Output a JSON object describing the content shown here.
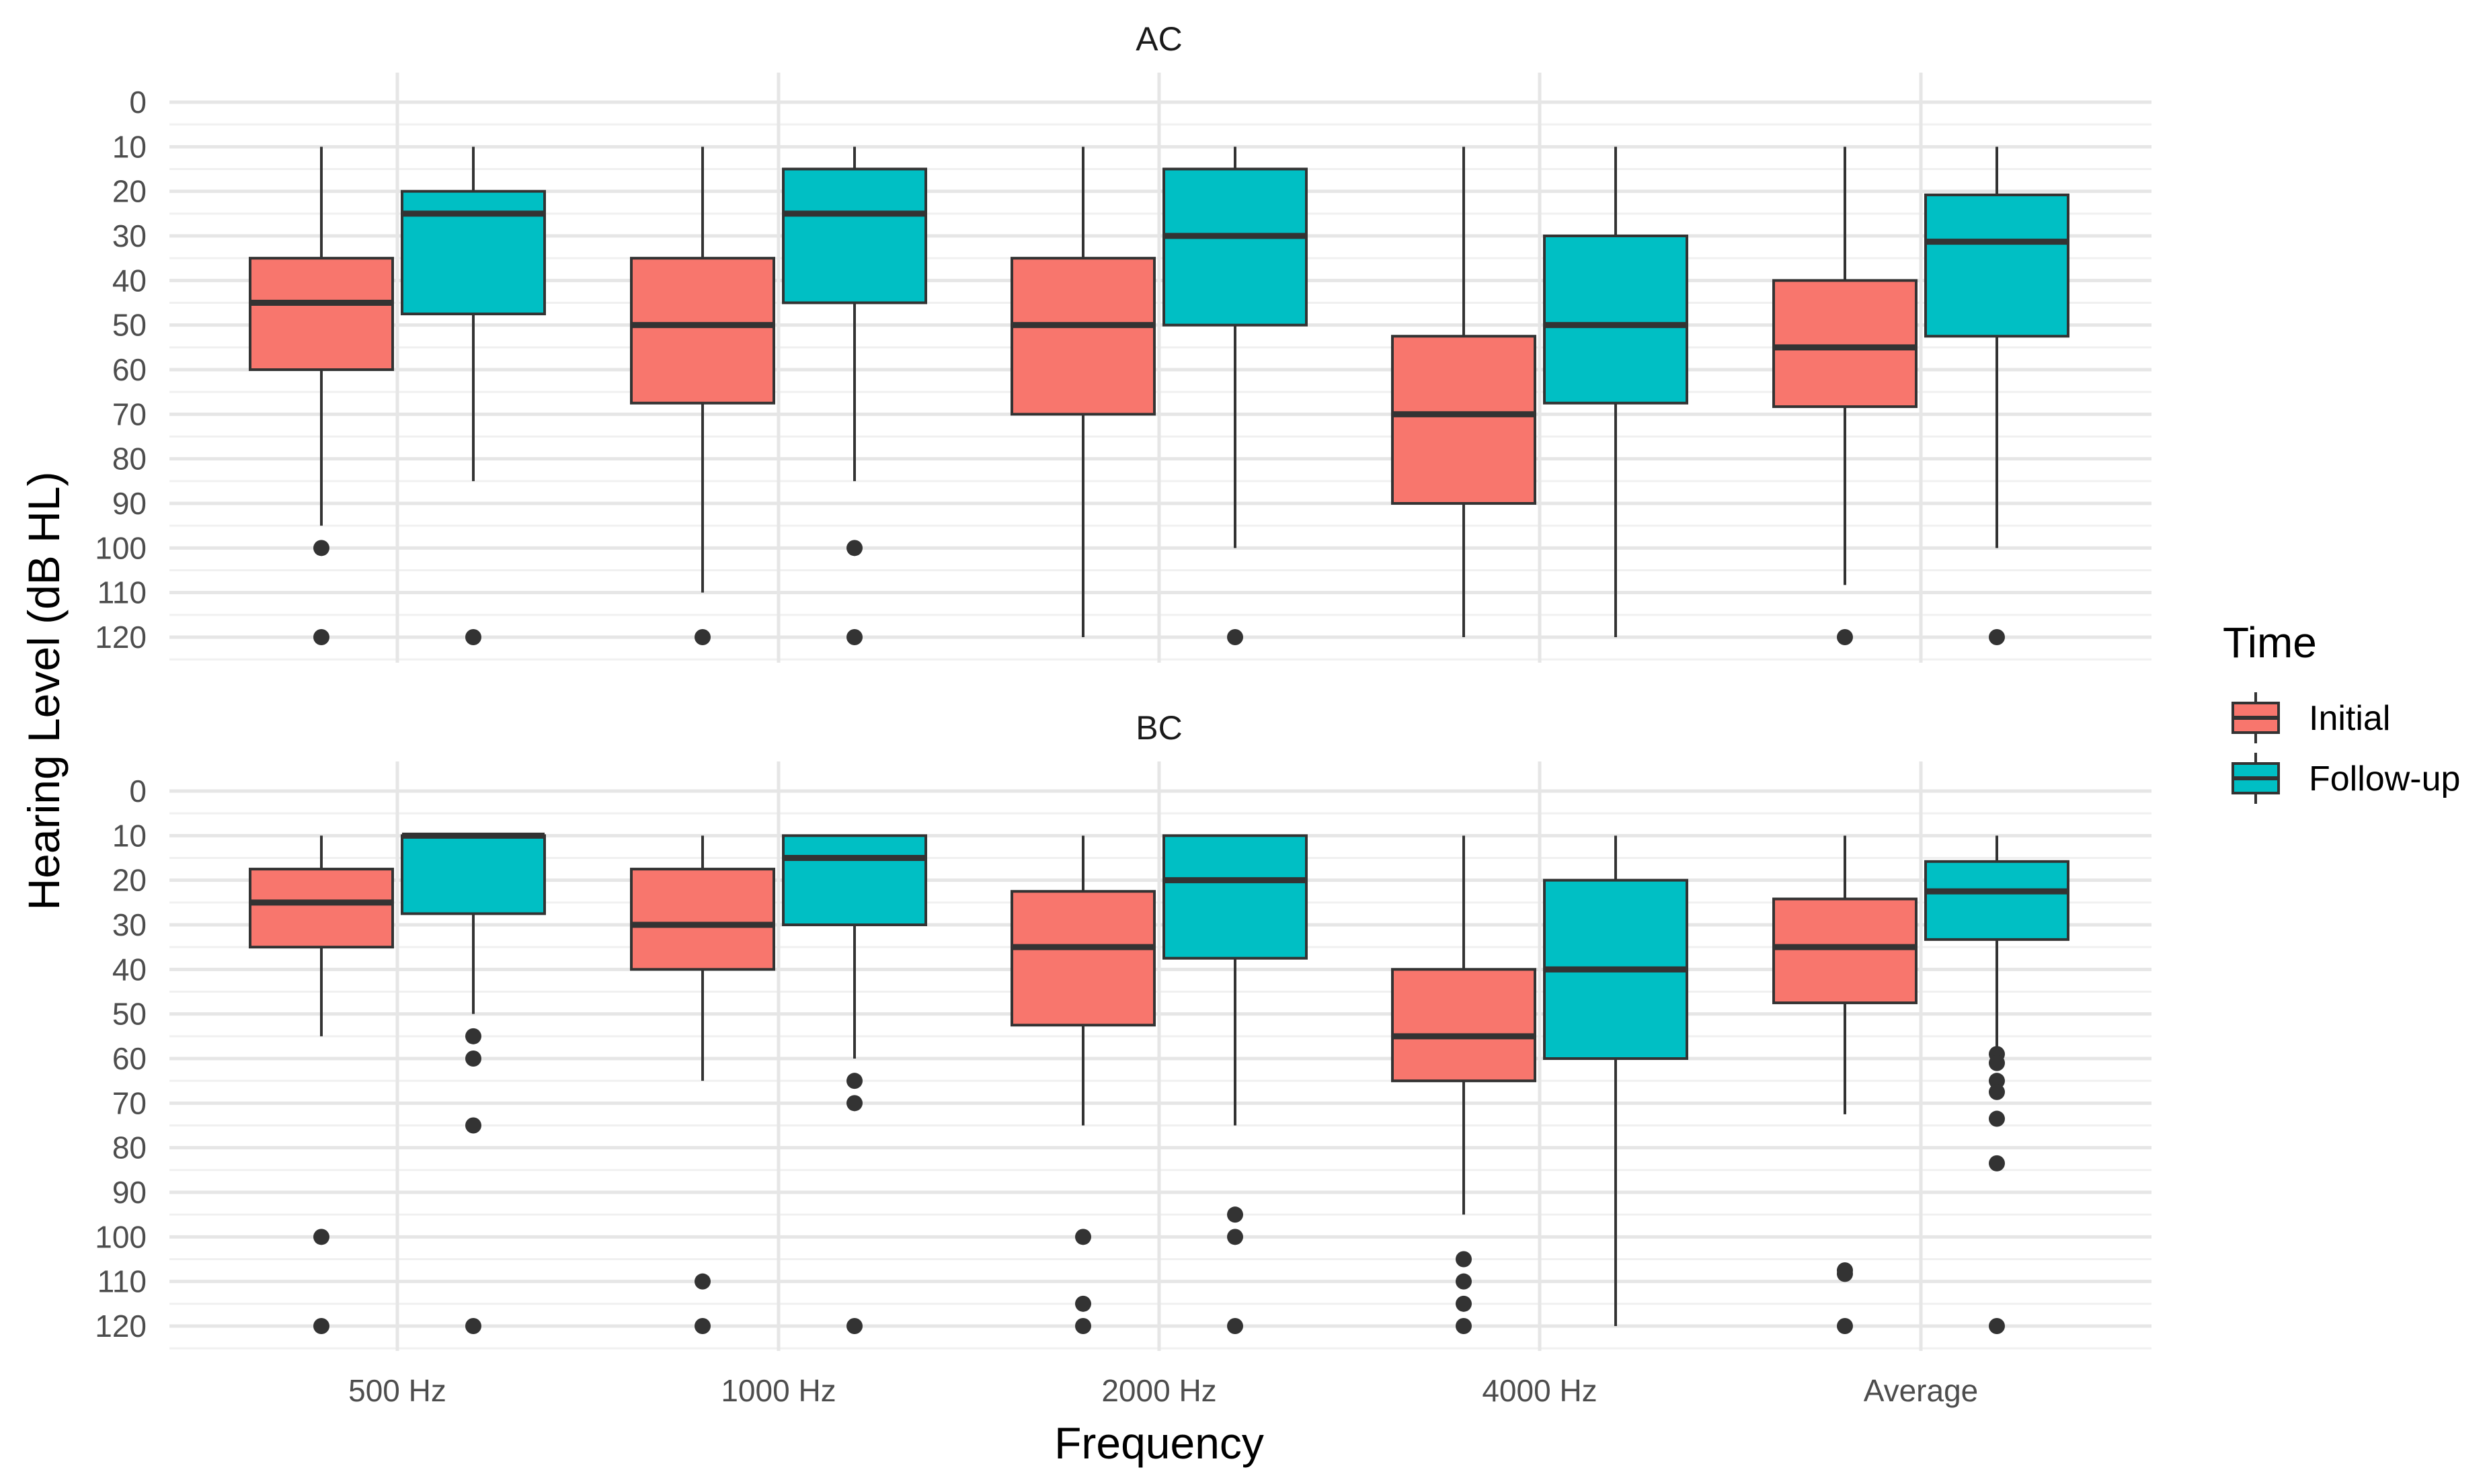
{
  "chart_data": {
    "type": "boxplot",
    "xlabel": "Frequency",
    "ylabel": "Hearing Level (dB HL)",
    "categories": [
      "500 Hz",
      "1000 Hz",
      "2000 Hz",
      "4000 Hz",
      "Average"
    ],
    "y_ticks": [
      "0",
      "10",
      "20",
      "30",
      "40",
      "50",
      "60",
      "70",
      "80",
      "90",
      "100",
      "110",
      "120"
    ],
    "y_range": [
      0,
      120
    ],
    "y_reversed": true,
    "grid": true,
    "legend": {
      "title": "Time",
      "position": "right",
      "entries": [
        {
          "name": "Initial",
          "color": "#F8766D"
        },
        {
          "name": "Follow-up",
          "color": "#00BFC4"
        }
      ]
    },
    "panels": [
      {
        "label": "AC",
        "groups": [
          {
            "category": "500 Hz",
            "initial": {
              "q1": 35,
              "median": 45,
              "q3": 60,
              "whisker_low": 10,
              "whisker_high": 95,
              "outliers": [
                100,
                120
              ]
            },
            "followup": {
              "q1": 20,
              "median": 25,
              "q3": 47.5,
              "whisker_low": 10,
              "whisker_high": 85,
              "outliers": [
                120
              ]
            }
          },
          {
            "category": "1000 Hz",
            "initial": {
              "q1": 35,
              "median": 50,
              "q3": 67.5,
              "whisker_low": 10,
              "whisker_high": 110,
              "outliers": [
                120
              ]
            },
            "followup": {
              "q1": 15,
              "median": 25,
              "q3": 45,
              "whisker_low": 10,
              "whisker_high": 85,
              "outliers": [
                100,
                120
              ]
            }
          },
          {
            "category": "2000 Hz",
            "initial": {
              "q1": 35,
              "median": 50,
              "q3": 70,
              "whisker_low": 10,
              "whisker_high": 120,
              "outliers": []
            },
            "followup": {
              "q1": 15,
              "median": 30,
              "q3": 50,
              "whisker_low": 10,
              "whisker_high": 100,
              "outliers": [
                120
              ]
            }
          },
          {
            "category": "4000 Hz",
            "initial": {
              "q1": 52.5,
              "median": 70,
              "q3": 90,
              "whisker_low": 10,
              "whisker_high": 120,
              "outliers": []
            },
            "followup": {
              "q1": 30,
              "median": 50,
              "q3": 67.5,
              "whisker_low": 10,
              "whisker_high": 120,
              "outliers": []
            }
          },
          {
            "category": "Average",
            "initial": {
              "q1": 40,
              "median": 55,
              "q3": 68.3,
              "whisker_low": 10,
              "whisker_high": 108.3,
              "outliers": [
                120
              ]
            },
            "followup": {
              "q1": 20.8,
              "median": 31.3,
              "q3": 52.5,
              "whisker_low": 10,
              "whisker_high": 100,
              "outliers": [
                120
              ]
            }
          }
        ]
      },
      {
        "label": "BC",
        "groups": [
          {
            "category": "500 Hz",
            "initial": {
              "q1": 17.5,
              "median": 25,
              "q3": 35,
              "whisker_low": 10,
              "whisker_high": 55,
              "outliers": [
                100,
                120
              ]
            },
            "followup": {
              "q1": 10,
              "median": 10,
              "q3": 27.5,
              "whisker_low": 10,
              "whisker_high": 50,
              "outliers": [
                55,
                60,
                75,
                120
              ]
            }
          },
          {
            "category": "1000 Hz",
            "initial": {
              "q1": 17.5,
              "median": 30,
              "q3": 40,
              "whisker_low": 10,
              "whisker_high": 65,
              "outliers": [
                110,
                120
              ]
            },
            "followup": {
              "q1": 10,
              "median": 15,
              "q3": 30,
              "whisker_low": 10,
              "whisker_high": 60,
              "outliers": [
                65,
                70,
                120
              ]
            }
          },
          {
            "category": "2000 Hz",
            "initial": {
              "q1": 22.5,
              "median": 35,
              "q3": 52.5,
              "whisker_low": 10,
              "whisker_high": 75,
              "outliers": [
                100,
                115,
                120
              ]
            },
            "followup": {
              "q1": 10,
              "median": 20,
              "q3": 37.5,
              "whisker_low": 10,
              "whisker_high": 75,
              "outliers": [
                95,
                100,
                120
              ]
            }
          },
          {
            "category": "4000 Hz",
            "initial": {
              "q1": 40,
              "median": 55,
              "q3": 65,
              "whisker_low": 10,
              "whisker_high": 95,
              "outliers": [
                105,
                110,
                115,
                120
              ]
            },
            "followup": {
              "q1": 20,
              "median": 40,
              "q3": 60,
              "whisker_low": 10,
              "whisker_high": 120,
              "outliers": []
            }
          },
          {
            "category": "Average",
            "initial": {
              "q1": 24.2,
              "median": 35,
              "q3": 47.5,
              "whisker_low": 10,
              "whisker_high": 72.5,
              "outliers": [
                107.5,
                108.3,
                120
              ]
            },
            "followup": {
              "q1": 15.8,
              "median": 22.5,
              "q3": 33.3,
              "whisker_low": 10,
              "whisker_high": 57.5,
              "outliers": [
                59,
                61,
                65,
                67.5,
                73.5,
                83.5,
                120
              ]
            }
          }
        ]
      }
    ]
  }
}
